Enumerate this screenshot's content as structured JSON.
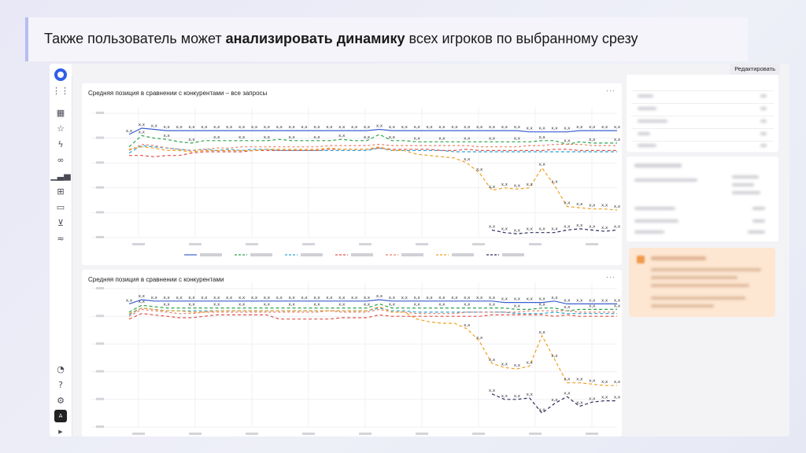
{
  "caption": {
    "pre": "Также пользователь может ",
    "bold": "анализировать динамику",
    "post": " всех игроков по выбранному срезу"
  },
  "toolbar": {
    "edit_label": "Редактировать"
  },
  "sidebar": {
    "icons": [
      "grid-icon",
      "dashboard-icon",
      "star-icon",
      "bolt-icon",
      "link-icon",
      "bar-chart-icon",
      "table-icon",
      "monitor-icon",
      "cart-icon",
      "settings-sliders-icon",
      "bell-icon",
      "help-icon",
      "gear-icon",
      "user-avatar",
      "expand-icon"
    ]
  },
  "colors": {
    "red": "#e0524a",
    "green": "#2aa44a",
    "cyan": "#2fa4d8",
    "blue": "#3a5fd0",
    "navy": "#2b2f5a",
    "orange": "#f0a020",
    "salmon": "#e8806a"
  },
  "value_label": "x,x",
  "panels": [
    {
      "title": "Средняя позиция в сравнении с конкурентами – все запросы",
      "menu": "···"
    },
    {
      "title": "Средняя позиция в сравнении с конкурентами",
      "menu": "···"
    }
  ],
  "chart_data": [
    {
      "type": "line",
      "title": "Средняя позиция в сравнении с конкурентами – все запросы",
      "x": [
        0,
        1,
        2,
        3,
        4,
        5,
        6,
        7,
        8,
        9,
        10,
        11,
        12,
        13,
        14,
        15,
        16,
        17,
        18,
        19,
        20,
        21,
        22,
        23,
        24,
        25,
        26,
        27,
        28,
        29,
        30,
        31,
        32,
        33,
        34,
        35,
        36,
        37,
        38,
        39
      ],
      "ylim": [
        0,
        10
      ],
      "series": [
        {
          "color": "#3a5fd0",
          "dash": "none",
          "values": [
            8.3,
            8.8,
            8.7,
            8.6,
            8.6,
            8.6,
            8.6,
            8.6,
            8.6,
            8.6,
            8.6,
            8.6,
            8.6,
            8.6,
            8.6,
            8.6,
            8.6,
            8.6,
            8.6,
            8.6,
            8.7,
            8.6,
            8.6,
            8.6,
            8.6,
            8.6,
            8.6,
            8.6,
            8.6,
            8.6,
            8.6,
            8.6,
            8.5,
            8.5,
            8.5,
            8.5,
            8.6,
            8.6,
            8.6,
            8.6
          ]
        },
        {
          "color": "#2aa44a",
          "dash": "4,3",
          "values": [
            7.3,
            8.2,
            8.0,
            7.9,
            7.7,
            7.6,
            7.8,
            7.8,
            7.8,
            7.8,
            7.8,
            7.8,
            7.9,
            7.8,
            7.8,
            7.8,
            7.8,
            7.9,
            7.8,
            7.8,
            8.3,
            7.8,
            7.8,
            7.7,
            7.7,
            7.7,
            7.7,
            7.7,
            7.7,
            7.7,
            7.7,
            7.7,
            7.7,
            7.8,
            7.8,
            7.5,
            7.7,
            7.6,
            7.6,
            7.6
          ]
        },
        {
          "color": "#2fa4d8",
          "dash": "4,3",
          "values": [
            6.8,
            7.4,
            7.3,
            7.2,
            7.1,
            7.0,
            7.1,
            7.0,
            7.1,
            7.0,
            7.1,
            7.1,
            7.0,
            7.0,
            7.0,
            7.0,
            7.0,
            7.0,
            7.0,
            7.0,
            7.2,
            7.0,
            7.0,
            7.0,
            7.0,
            7.0,
            6.9,
            6.9,
            6.9,
            6.9,
            6.9,
            6.9,
            6.9,
            6.9,
            6.9,
            6.9,
            6.9,
            6.9,
            6.9,
            6.9
          ]
        },
        {
          "color": "#e0524a",
          "dash": "4,3",
          "values": [
            6.6,
            6.6,
            6.5,
            6.6,
            6.6,
            6.8,
            6.9,
            6.9,
            6.9,
            6.9,
            7.0,
            7.0,
            7.0,
            7.0,
            7.0,
            7.0,
            7.1,
            7.1,
            7.1,
            7.1,
            7.2,
            7.1,
            7.1,
            7.1,
            7.1,
            7.0,
            7.0,
            7.1,
            7.0,
            7.0,
            7.0,
            7.0,
            7.0,
            7.0,
            7.1,
            7.1,
            7.0,
            7.0,
            7.0,
            7.0
          ]
        },
        {
          "color": "#e8806a",
          "dash": "3,3",
          "values": [
            7.0,
            7.5,
            7.4,
            7.2,
            7.1,
            7.0,
            7.1,
            7.2,
            7.2,
            7.3,
            7.3,
            7.3,
            7.3,
            7.3,
            7.3,
            7.3,
            7.4,
            7.4,
            7.4,
            7.4,
            7.5,
            7.4,
            7.4,
            7.4,
            7.4,
            7.4,
            7.4,
            7.4,
            7.3,
            7.3,
            7.3,
            7.3,
            7.4,
            7.4,
            7.5,
            7.5,
            7.5,
            7.4,
            7.4,
            7.4
          ]
        },
        {
          "color": "#f0a020",
          "dash": "4,3",
          "values": [
            7.1,
            7.3,
            7.2,
            7.0,
            7.0,
            6.9,
            7.0,
            7.0,
            7.0,
            7.0,
            7.0,
            7.1,
            7.1,
            7.1,
            7.1,
            7.1,
            7.2,
            7.1,
            7.1,
            7.1,
            7.3,
            7.0,
            7.0,
            6.7,
            6.6,
            6.5,
            6.4,
            6.0,
            5.2,
            3.8,
            4.0,
            3.9,
            4.0,
            5.6,
            4.2,
            2.5,
            2.4,
            2.3,
            2.3,
            2.2
          ]
        },
        {
          "color": "#2b2f5a",
          "dash": "4,3",
          "values": [
            null,
            null,
            null,
            null,
            null,
            null,
            null,
            null,
            null,
            null,
            null,
            null,
            null,
            null,
            null,
            null,
            null,
            null,
            null,
            null,
            null,
            null,
            null,
            null,
            null,
            null,
            null,
            null,
            null,
            0.6,
            0.4,
            0.3,
            0.4,
            0.4,
            0.4,
            0.6,
            0.7,
            0.6,
            0.5,
            0.6
          ]
        }
      ]
    },
    {
      "type": "line",
      "title": "Средняя позиция в сравнении с конкурентами",
      "x": [
        0,
        1,
        2,
        3,
        4,
        5,
        6,
        7,
        8,
        9,
        10,
        11,
        12,
        13,
        14,
        15,
        16,
        17,
        18,
        19,
        20,
        21,
        22,
        23,
        24,
        25,
        26,
        27,
        28,
        29,
        30,
        31,
        32,
        33,
        34,
        35,
        36,
        37,
        38,
        39
      ],
      "ylim": [
        0,
        10
      ],
      "series": [
        {
          "color": "#3a5fd0",
          "dash": "none",
          "values": [
            8.9,
            9.2,
            9.1,
            9.1,
            9.1,
            9.1,
            9.1,
            9.1,
            9.1,
            9.1,
            9.1,
            9.1,
            9.1,
            9.1,
            9.1,
            9.1,
            9.1,
            9.1,
            9.1,
            9.1,
            9.2,
            9.1,
            9.1,
            9.1,
            9.1,
            9.1,
            9.1,
            9.1,
            9.1,
            9.1,
            9.0,
            9.0,
            9.0,
            9.0,
            9.1,
            8.9,
            8.9,
            8.9,
            8.9,
            8.9
          ]
        },
        {
          "color": "#2aa44a",
          "dash": "4,3",
          "values": [
            8.3,
            8.8,
            8.7,
            8.6,
            8.6,
            8.6,
            8.6,
            8.6,
            8.6,
            8.6,
            8.6,
            8.6,
            8.6,
            8.6,
            8.6,
            8.6,
            8.6,
            8.6,
            8.6,
            8.6,
            8.9,
            8.6,
            8.6,
            8.6,
            8.6,
            8.6,
            8.6,
            8.6,
            8.6,
            8.6,
            8.6,
            8.5,
            8.5,
            8.6,
            8.6,
            8.4,
            8.5,
            8.5,
            8.5,
            8.5
          ]
        },
        {
          "color": "#2fa4d8",
          "dash": "4,3",
          "values": [
            8.1,
            8.6,
            8.5,
            8.4,
            8.4,
            8.4,
            8.4,
            8.4,
            8.4,
            8.4,
            8.4,
            8.4,
            8.4,
            8.4,
            8.4,
            8.4,
            8.4,
            8.4,
            8.4,
            8.4,
            8.6,
            8.4,
            8.4,
            8.3,
            8.3,
            8.3,
            8.3,
            8.3,
            8.3,
            8.3,
            8.3,
            8.2,
            8.2,
            8.2,
            8.3,
            8.2,
            8.2,
            8.2,
            8.2,
            8.2
          ]
        },
        {
          "color": "#e0524a",
          "dash": "4,3",
          "values": [
            7.8,
            8.2,
            8.1,
            8.0,
            7.9,
            7.9,
            8.0,
            8.1,
            8.1,
            8.1,
            8.1,
            8.1,
            7.8,
            7.8,
            7.8,
            7.8,
            7.8,
            7.9,
            7.9,
            7.9,
            8.1,
            8.0,
            8.0,
            8.0,
            8.0,
            8.0,
            8.0,
            8.0,
            8.0,
            8.1,
            8.1,
            8.1,
            8.1,
            8.1,
            8.0,
            8.1,
            8.0,
            8.0,
            8.0,
            8.0
          ]
        },
        {
          "color": "#e8806a",
          "dash": "3,3",
          "values": [
            8.0,
            8.5,
            8.4,
            8.3,
            8.2,
            8.2,
            8.3,
            8.3,
            8.3,
            8.3,
            8.3,
            8.3,
            8.3,
            8.3,
            8.3,
            8.3,
            8.4,
            8.3,
            8.3,
            8.3,
            8.5,
            8.3,
            8.3,
            8.2,
            8.2,
            8.2,
            8.2,
            8.3,
            8.3,
            8.3,
            8.3,
            8.3,
            8.4,
            8.4,
            8.4,
            8.4,
            8.3,
            8.3,
            8.3,
            8.3
          ]
        },
        {
          "color": "#f0a020",
          "dash": "4,3",
          "values": [
            8.2,
            8.6,
            8.5,
            8.4,
            8.4,
            8.3,
            8.3,
            8.4,
            8.4,
            8.4,
            8.4,
            8.4,
            8.4,
            8.4,
            8.4,
            8.4,
            8.4,
            8.4,
            8.4,
            8.4,
            8.7,
            8.3,
            8.3,
            7.8,
            7.6,
            7.5,
            7.5,
            7.1,
            6.2,
            4.6,
            4.3,
            4.2,
            4.4,
            6.6,
            4.9,
            3.2,
            3.2,
            3.1,
            3.0,
            3.0
          ]
        },
        {
          "color": "#2b2f5a",
          "dash": "4,3",
          "values": [
            null,
            null,
            null,
            null,
            null,
            null,
            null,
            null,
            null,
            null,
            null,
            null,
            null,
            null,
            null,
            null,
            null,
            null,
            null,
            null,
            null,
            null,
            null,
            null,
            null,
            null,
            null,
            null,
            null,
            2.4,
            2.0,
            2.0,
            2.1,
            1.0,
            1.7,
            2.2,
            1.5,
            1.8,
            1.9,
            1.9
          ]
        }
      ]
    }
  ]
}
